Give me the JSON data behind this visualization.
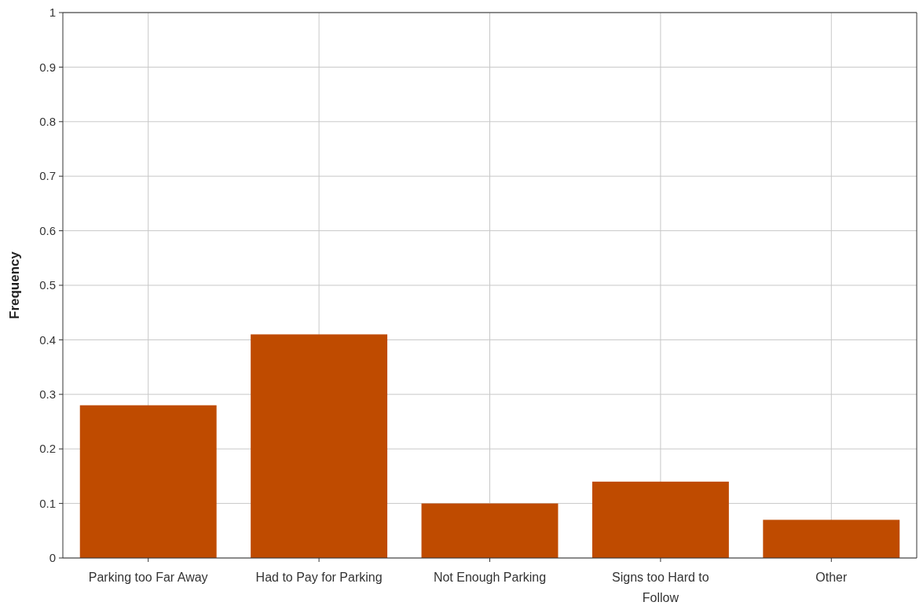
{
  "chart_data": {
    "type": "bar",
    "ylabel": "Frequency",
    "categories": [
      "Parking too Far Away",
      "Had to Pay for Parking",
      "Not Enough Parking",
      "Signs too Hard to Follow",
      "Other"
    ],
    "values": [
      0.28,
      0.41,
      0.1,
      0.14,
      0.07
    ],
    "color": "#bf4b00",
    "ylim": [
      0,
      1
    ],
    "yticks": [
      0,
      0.1,
      0.2,
      0.3,
      0.4,
      0.5,
      0.6,
      0.7,
      0.8,
      0.9,
      1
    ],
    "grid": true
  }
}
